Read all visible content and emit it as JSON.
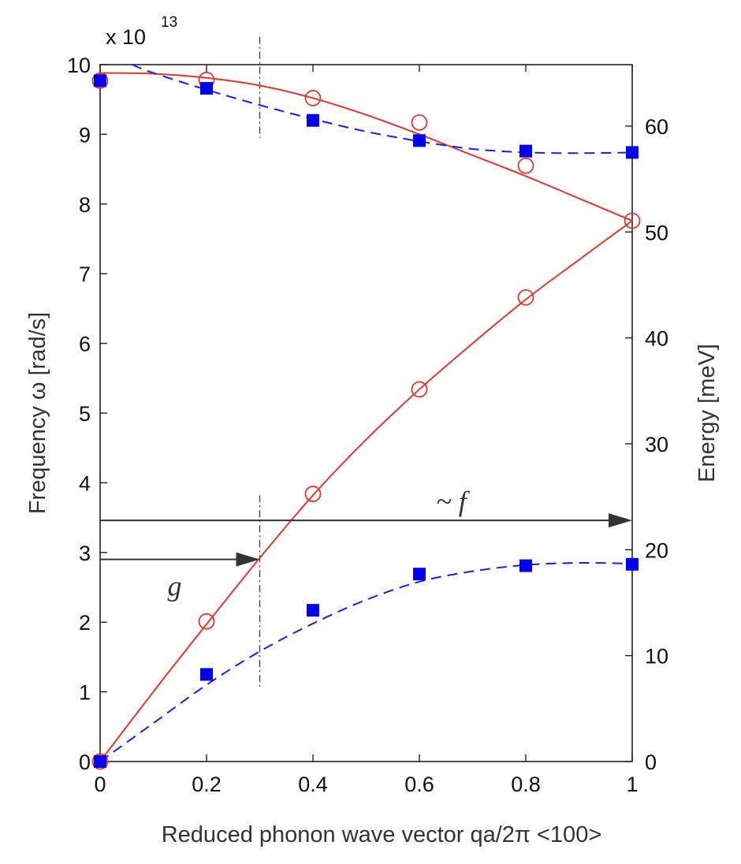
{
  "chart_data": {
    "type": "line",
    "xlabel": "Reduced phonon wave vector qa/2π <100>",
    "ylabel": "Frequency ω [rad/s]",
    "y2label": "Energy [meV]",
    "y_exponent_base": "x 10",
    "y_exponent_power": "13",
    "xlim": [
      0,
      1
    ],
    "ylim": [
      0,
      10
    ],
    "y2lim": [
      0,
      65.8
    ],
    "x_ticks": [
      "0",
      "0.2",
      "0.4",
      "0.6",
      "0.8",
      "1"
    ],
    "y_ticks": [
      "0",
      "1",
      "2",
      "3",
      "4",
      "5",
      "6",
      "7",
      "8",
      "9",
      "10"
    ],
    "y2_ticks": [
      "0",
      "10",
      "20",
      "30",
      "40",
      "50",
      "60"
    ],
    "series": [
      {
        "style": "solid-line",
        "color": "#e8352a",
        "points": [
          [
            0.0,
            9.88
          ],
          [
            0.1,
            9.87
          ],
          [
            0.2,
            9.81
          ],
          [
            0.3,
            9.7
          ],
          [
            0.4,
            9.52
          ],
          [
            0.5,
            9.28
          ],
          [
            0.6,
            9.0
          ],
          [
            0.7,
            8.7
          ],
          [
            0.8,
            8.4
          ],
          [
            0.9,
            8.08
          ],
          [
            1.0,
            7.76
          ]
        ]
      },
      {
        "style": "solid-line",
        "color": "#e8352a",
        "points": [
          [
            0.0,
            0.0
          ],
          [
            0.1,
            1.0
          ],
          [
            0.2,
            1.97
          ],
          [
            0.3,
            2.92
          ],
          [
            0.4,
            3.82
          ],
          [
            0.5,
            4.62
          ],
          [
            0.6,
            5.34
          ],
          [
            0.7,
            6.0
          ],
          [
            0.8,
            6.63
          ],
          [
            0.9,
            7.2
          ],
          [
            1.0,
            7.76
          ]
        ]
      },
      {
        "style": "circle-markers",
        "color": "#e8352a",
        "points": [
          [
            0.0,
            9.77
          ],
          [
            0.2,
            9.78
          ],
          [
            0.4,
            9.52
          ],
          [
            0.6,
            9.17
          ],
          [
            0.8,
            8.55
          ],
          [
            1.0,
            7.76
          ],
          [
            0.0,
            0.0
          ],
          [
            0.2,
            2.01
          ],
          [
            0.4,
            3.84
          ],
          [
            0.6,
            5.34
          ],
          [
            0.8,
            6.66
          ]
        ]
      },
      {
        "style": "dashed-line",
        "color": "#1a1aff",
        "points": [
          [
            0.06,
            10.0
          ],
          [
            0.1,
            9.88
          ],
          [
            0.2,
            9.64
          ],
          [
            0.3,
            9.42
          ],
          [
            0.4,
            9.22
          ],
          [
            0.5,
            9.04
          ],
          [
            0.6,
            8.9
          ],
          [
            0.7,
            8.79
          ],
          [
            0.8,
            8.74
          ],
          [
            0.9,
            8.73
          ],
          [
            1.0,
            8.74
          ]
        ]
      },
      {
        "style": "dashed-line",
        "color": "#1a1aff",
        "points": [
          [
            0.0,
            0.0
          ],
          [
            0.1,
            0.55
          ],
          [
            0.2,
            1.1
          ],
          [
            0.3,
            1.58
          ],
          [
            0.4,
            1.98
          ],
          [
            0.5,
            2.32
          ],
          [
            0.6,
            2.58
          ],
          [
            0.7,
            2.73
          ],
          [
            0.8,
            2.82
          ],
          [
            0.9,
            2.85
          ],
          [
            1.0,
            2.84
          ]
        ]
      },
      {
        "style": "square-markers",
        "color": "#0000ee",
        "points": [
          [
            0.0,
            9.77
          ],
          [
            0.2,
            9.66
          ],
          [
            0.4,
            9.2
          ],
          [
            0.6,
            8.91
          ],
          [
            0.8,
            8.76
          ],
          [
            1.0,
            8.74
          ],
          [
            0.0,
            0.0
          ],
          [
            0.2,
            1.25
          ],
          [
            0.4,
            2.17
          ],
          [
            0.6,
            2.69
          ],
          [
            0.8,
            2.81
          ],
          [
            1.0,
            2.83
          ]
        ]
      }
    ],
    "vertical_marker_x": 0.3,
    "annotations": [
      {
        "label": "~ f",
        "arrow_from": [
          0.0,
          3.46
        ],
        "arrow_to": [
          1.0,
          3.46
        ]
      },
      {
        "label": "g",
        "arrow_from": [
          0.0,
          2.9
        ],
        "arrow_to": [
          0.3,
          2.9
        ]
      }
    ]
  }
}
